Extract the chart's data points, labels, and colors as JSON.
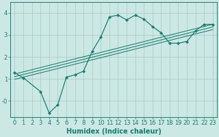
{
  "bg_color": "#cce8e4",
  "grid_color": "#aacccc",
  "line_color": "#1a7a6e",
  "marker_color": "#1a7a6e",
  "xlabel": "Humidex (Indice chaleur)",
  "xlabel_fontsize": 7,
  "tick_fontsize": 6,
  "xlim": [
    -0.5,
    23.5
  ],
  "ylim": [
    -0.75,
    4.5
  ],
  "yticks": [
    0,
    1,
    2,
    3,
    4
  ],
  "ytick_labels": [
    "-0",
    "1",
    "2",
    "3",
    "4"
  ],
  "curve_x": [
    0,
    1,
    3,
    4,
    5,
    6,
    7,
    8,
    9,
    10,
    11,
    12,
    13,
    14,
    15,
    16,
    17,
    18,
    19,
    20,
    21,
    22,
    23
  ],
  "curve_y": [
    1.28,
    1.05,
    0.42,
    -0.55,
    -0.18,
    1.08,
    1.18,
    1.35,
    2.25,
    2.9,
    3.82,
    3.9,
    3.68,
    3.9,
    3.72,
    3.38,
    3.1,
    2.62,
    2.62,
    2.7,
    3.18,
    3.48,
    3.48
  ],
  "straight_lines": [
    {
      "x": [
        0,
        23
      ],
      "y": [
        1.22,
        3.48
      ]
    },
    {
      "x": [
        0,
        23
      ],
      "y": [
        1.1,
        3.36
      ]
    },
    {
      "x": [
        0,
        23
      ],
      "y": [
        0.98,
        3.24
      ]
    }
  ]
}
